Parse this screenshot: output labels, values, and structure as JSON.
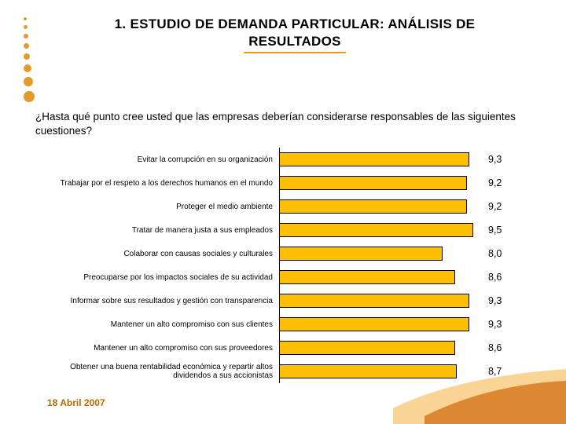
{
  "page": {
    "title_line1": "1. ESTUDIO DE DEMANDA PARTICULAR: ANÁLISIS DE",
    "title_line2": "RESULTADOS",
    "title_underline_color": "#e39a2a",
    "question": "¿Hasta qué punto cree usted que las empresas deberían considerarse responsables de las siguientes cuestiones?",
    "footer_date": "18 Abril 2007"
  },
  "deco_dots": {
    "color": "#e39a2a",
    "sizes": [
      4,
      5,
      6,
      7,
      8,
      10,
      12,
      14
    ]
  },
  "chart": {
    "type": "bar-horizontal",
    "x_max": 10,
    "bar_color": "#fdbf00",
    "bar_border": "#000000",
    "label_fontsize": 10,
    "value_fontsize": 12.5,
    "background": "#ffffff",
    "items": [
      {
        "label": "Evitar la corrupción en su organización",
        "value": 9.3,
        "display": "9,3"
      },
      {
        "label": "Trabajar por el respeto a los derechos humanos en el mundo",
        "value": 9.2,
        "display": "9,2"
      },
      {
        "label": "Proteger el medio ambiente",
        "value": 9.2,
        "display": "9,2"
      },
      {
        "label": "Tratar de manera justa a sus empleados",
        "value": 9.5,
        "display": "9,5"
      },
      {
        "label": "Colaborar con causas sociales y culturales",
        "value": 8.0,
        "display": "8,0"
      },
      {
        "label": "Preocuparse por los impactos sociales de su actividad",
        "value": 8.6,
        "display": "8,6"
      },
      {
        "label": "Informar sobre sus resultados y gestión con transparencia",
        "value": 9.3,
        "display": "9,3"
      },
      {
        "label": "Mantener un alto compromiso con sus clientes",
        "value": 9.3,
        "display": "9,3"
      },
      {
        "label": "Mantener un alto compromiso con sus proveedores",
        "value": 8.6,
        "display": "8,6"
      },
      {
        "label": "Obtener una buena rentabilidad económica y repartir altos dividendos a sus accionistas",
        "value": 8.7,
        "display": "8,7"
      }
    ]
  },
  "swoosh": {
    "color_light": "#f7c97a",
    "color_dark": "#d77a1f"
  }
}
